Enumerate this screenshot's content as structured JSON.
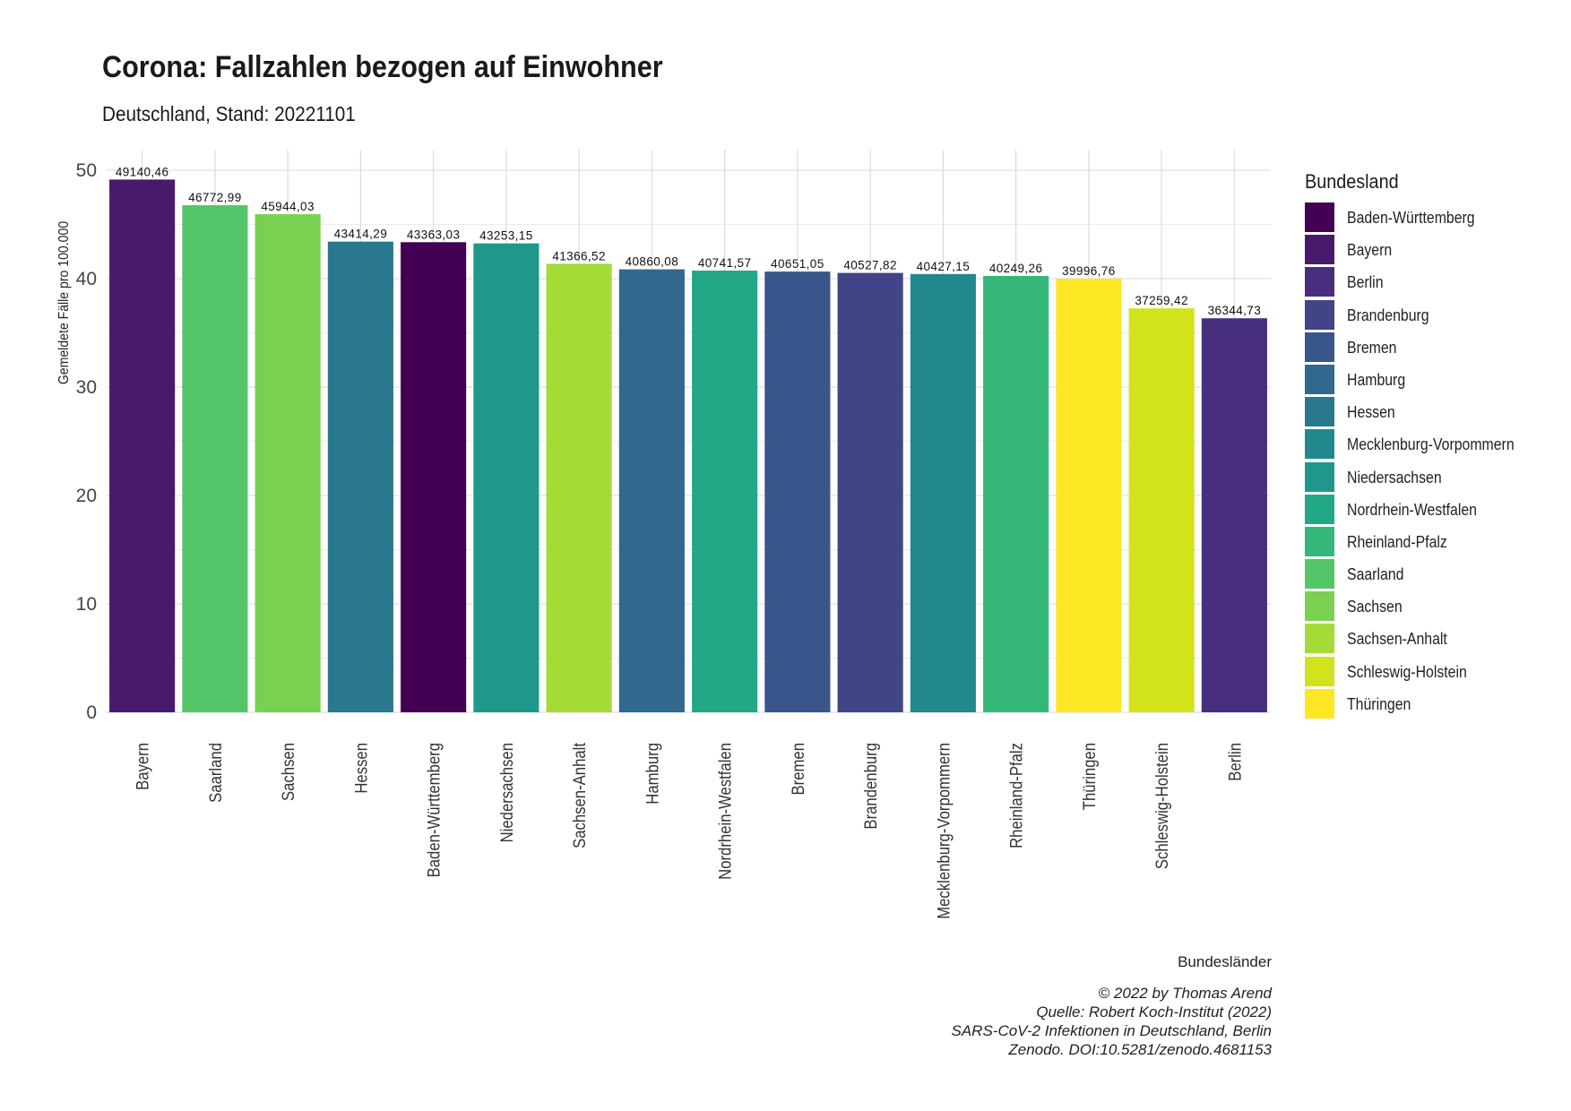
{
  "title": "Corona: Fallzahlen bezogen auf Einwohner",
  "subtitle": "Deutschland, Stand: 20221101",
  "legend": {
    "title": "Bundesland",
    "items": [
      {
        "label": "Baden-Württemberg",
        "color": "#440154"
      },
      {
        "label": "Bayern",
        "color": "#481A6C"
      },
      {
        "label": "Berlin",
        "color": "#472F7D"
      },
      {
        "label": "Brandenburg",
        "color": "#414487"
      },
      {
        "label": "Bremen",
        "color": "#39568C"
      },
      {
        "label": "Hamburg",
        "color": "#31688E"
      },
      {
        "label": "Hessen",
        "color": "#2A788E"
      },
      {
        "label": "Mecklenburg-Vorpommern",
        "color": "#23888E"
      },
      {
        "label": "Niedersachsen",
        "color": "#1F988B"
      },
      {
        "label": "Nordrhein-Westfalen",
        "color": "#22A884"
      },
      {
        "label": "Rheinland-Pfalz",
        "color": "#35B779"
      },
      {
        "label": "Saarland",
        "color": "#54C568"
      },
      {
        "label": "Sachsen",
        "color": "#7AD151"
      },
      {
        "label": "Sachsen-Anhalt",
        "color": "#A5DB36"
      },
      {
        "label": "Schleswig-Holstein",
        "color": "#D2E21B"
      },
      {
        "label": "Thüringen",
        "color": "#FDE725"
      }
    ]
  },
  "chart_data": {
    "type": "bar",
    "title": "Corona: Fallzahlen bezogen auf Einwohner",
    "subtitle": "Deutschland, Stand: 20221101",
    "xlabel": "Bundesländer",
    "ylabel": "Gemeldete Fälle pro 100.000",
    "ylim": [
      0,
      51.5
    ],
    "yticks": [
      0,
      10,
      20,
      30,
      40,
      50
    ],
    "grid": true,
    "legend_position": "right",
    "categories": [
      "Bayern",
      "Saarland",
      "Sachsen",
      "Hessen",
      "Baden-Württemberg",
      "Niedersachsen",
      "Sachsen-Anhalt",
      "Hamburg",
      "Nordrhein-Westfalen",
      "Bremen",
      "Brandenburg",
      "Mecklenburg-Vorpommern",
      "Rheinland-Pfalz",
      "Thüringen",
      "Schleswig-Holstein",
      "Berlin"
    ],
    "values": [
      49.14046,
      46.77299,
      45.94403,
      43.41429,
      43.36303,
      43.25315,
      41.36652,
      40.86008,
      40.74157,
      40.65105,
      40.52782,
      40.42715,
      40.24926,
      39.99676,
      37.25942,
      36.34473
    ],
    "data_labels": [
      "49140,46",
      "46772,99",
      "45944,03",
      "43414,29",
      "43363,03",
      "43253,15",
      "41366,52",
      "40860,08",
      "40741,57",
      "40651,05",
      "40527,82",
      "40427,15",
      "40249,26",
      "39996,76",
      "37259,42",
      "36344,73"
    ]
  },
  "caption": [
    "© 2022 by Thomas Arend",
    "Quelle: Robert Koch-Institut (2022)",
    "SARS-CoV-2 Infektionen in Deutschland, Berlin",
    "Zenodo. DOI:10.5281/zenodo.4681153"
  ]
}
